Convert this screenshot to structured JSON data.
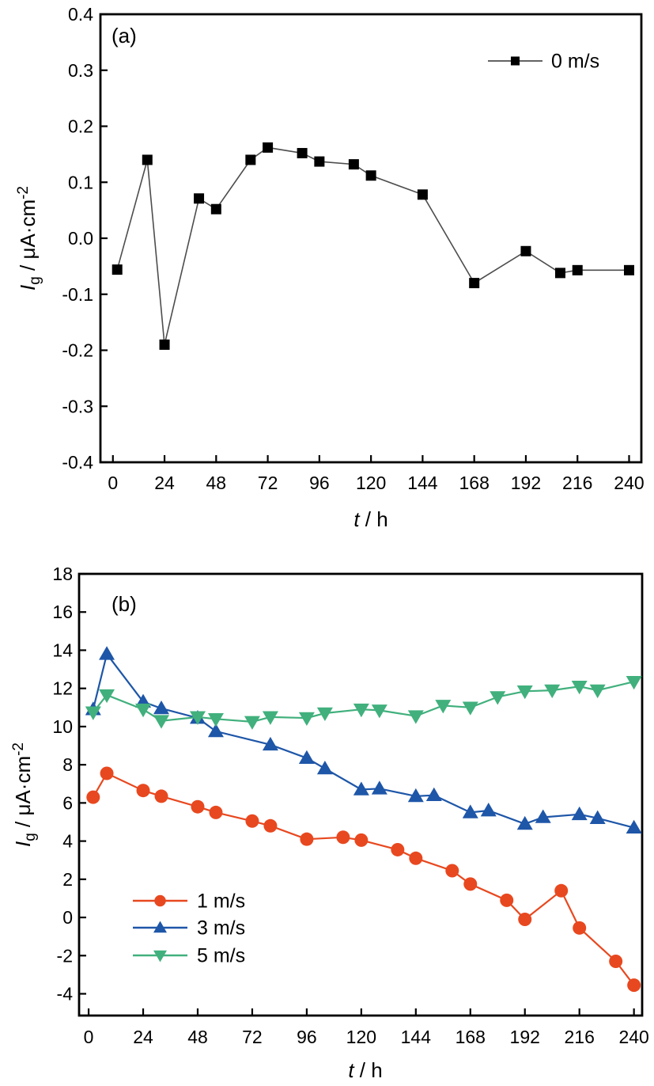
{
  "figure": {
    "background": "#ffffff",
    "frame_color": "#000000",
    "text_color": "#000000"
  },
  "chart_data": [
    {
      "id": "a",
      "type": "line",
      "panel_label": "(a)",
      "xlabel_parts": {
        "var": "t",
        "rest": " / h"
      },
      "ylabel_parts": {
        "var": "I",
        "sub": "g",
        "mid": " / μA·cm",
        "sup": "-2"
      },
      "xlim": [
        -5.8,
        245.7
      ],
      "ylim": [
        -0.4,
        0.4
      ],
      "grid": false,
      "x_ticks": [
        0,
        24,
        48,
        72,
        96,
        120,
        144,
        168,
        192,
        216,
        240
      ],
      "x_tick_labels": [
        "0",
        "24",
        "48",
        "72",
        "96",
        "120",
        "144",
        "168",
        "192",
        "216",
        "240"
      ],
      "y_ticks": [
        -0.4,
        -0.3,
        -0.2,
        -0.1,
        0,
        0.1,
        0.2,
        0.3,
        0.4
      ],
      "y_tick_labels": [
        "-0.4",
        "-0.3",
        "-0.2",
        "-0.1",
        "0.0",
        "0.1",
        "0.2",
        "0.3",
        "0.4"
      ],
      "legend": {
        "position": "top-right",
        "entries": [
          "0 m/s"
        ]
      },
      "series": [
        {
          "name": "0 m/s",
          "marker": "square",
          "marker_color": "#000000",
          "line_color": "#4d4d4d",
          "x": [
            2,
            16,
            24,
            40,
            48,
            64,
            72,
            88,
            96,
            112,
            120,
            144,
            168,
            192,
            208,
            216,
            240
          ],
          "y": [
            -0.056,
            0.14,
            -0.19,
            0.071,
            0.052,
            0.14,
            0.162,
            0.152,
            0.137,
            0.132,
            0.112,
            0.078,
            -0.08,
            -0.023,
            -0.062,
            -0.057,
            -0.057
          ]
        }
      ]
    },
    {
      "id": "b",
      "type": "line",
      "panel_label": "(b)",
      "xlabel_parts": {
        "var": "t",
        "rest": " / h"
      },
      "ylabel_parts": {
        "var": "I",
        "sub": "g",
        "mid": " / μA·cm",
        "sup": "-2"
      },
      "xlim": [
        -4.2,
        243.6
      ],
      "ylim": [
        -5.14,
        18
      ],
      "grid": false,
      "x_ticks": [
        0,
        24,
        48,
        72,
        96,
        120,
        144,
        168,
        192,
        216,
        240
      ],
      "x_tick_labels": [
        "0",
        "24",
        "48",
        "72",
        "96",
        "120",
        "144",
        "168",
        "192",
        "216",
        "240"
      ],
      "y_ticks": [
        -4,
        -2,
        0,
        2,
        4,
        6,
        8,
        10,
        12,
        14,
        16,
        18
      ],
      "y_tick_labels": [
        "-4",
        "-2",
        "0",
        "2",
        "4",
        "6",
        "8",
        "10",
        "12",
        "14",
        "16",
        "18"
      ],
      "legend": {
        "position": "lower-left",
        "entries": [
          "1 m/s",
          "3 m/s",
          "5 m/s"
        ]
      },
      "series": [
        {
          "name": "1 m/s",
          "marker": "circle",
          "marker_color": "#e8481f",
          "line_color": "#e8481f",
          "x": [
            2,
            8,
            24,
            32,
            48,
            56,
            72,
            80,
            96,
            112,
            120,
            136,
            144,
            160,
            168,
            184,
            192,
            208,
            216,
            232,
            240
          ],
          "y": [
            6.3,
            7.55,
            6.65,
            6.35,
            5.8,
            5.5,
            5.05,
            4.8,
            4.1,
            4.2,
            4.05,
            3.55,
            3.1,
            2.45,
            1.75,
            0.9,
            -0.1,
            1.4,
            -0.55,
            -2.3,
            -3.55
          ]
        },
        {
          "name": "3 m/s",
          "marker": "triangle-up",
          "marker_color": "#1e56a8",
          "line_color": "#1e56a8",
          "x": [
            2,
            8,
            24,
            32,
            48,
            56,
            80,
            96,
            104,
            120,
            128,
            144,
            152,
            168,
            176,
            192,
            200,
            216,
            224,
            240
          ],
          "y": [
            10.9,
            13.8,
            11.3,
            10.95,
            10.45,
            9.75,
            9.05,
            8.35,
            7.8,
            6.7,
            6.75,
            6.35,
            6.4,
            5.5,
            5.6,
            4.9,
            5.25,
            5.4,
            5.2,
            4.7
          ]
        },
        {
          "name": "5 m/s",
          "marker": "triangle-down",
          "marker_color": "#41b07d",
          "line_color": "#41b07d",
          "x": [
            2,
            8,
            24,
            32,
            48,
            56,
            72,
            80,
            96,
            104,
            120,
            128,
            144,
            156,
            168,
            180,
            192,
            204,
            216,
            224,
            240
          ],
          "y": [
            10.75,
            11.65,
            10.9,
            10.3,
            10.5,
            10.4,
            10.25,
            10.5,
            10.45,
            10.7,
            10.9,
            10.85,
            10.55,
            11.1,
            11.0,
            11.55,
            11.85,
            11.9,
            12.1,
            11.9,
            12.35
          ]
        }
      ]
    }
  ]
}
